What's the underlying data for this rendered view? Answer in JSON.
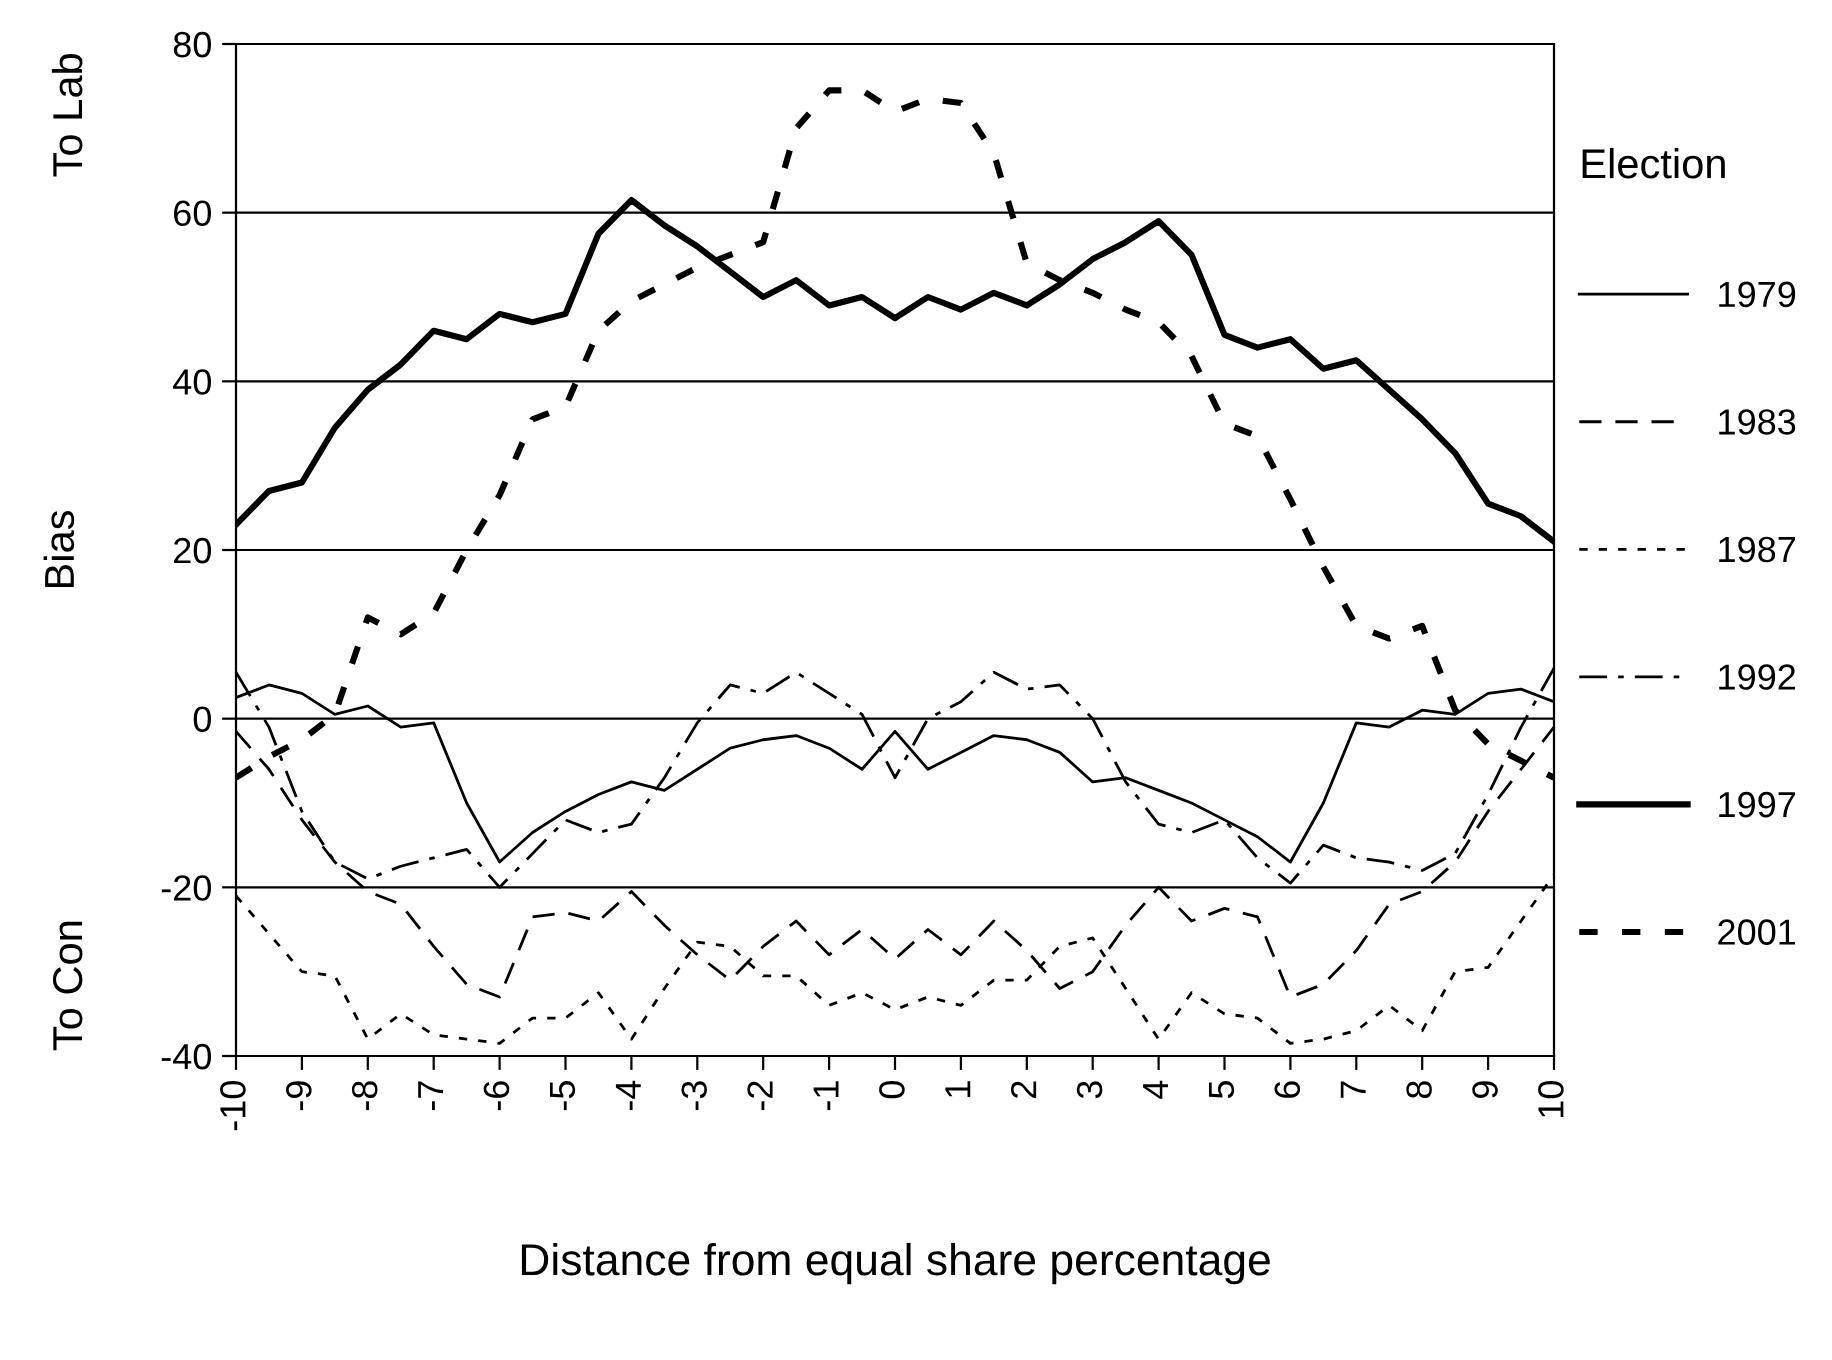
{
  "chart_data": {
    "type": "line",
    "xlabel": "Distance from equal share percentage",
    "ylabel": "Bias",
    "annotations": [
      "To Lab",
      "To Con"
    ],
    "legend_title": "Election",
    "legend": "right",
    "grid": "y",
    "x": [
      -10,
      -9.5,
      -9,
      -8.5,
      -8,
      -7.5,
      -7,
      -6.5,
      -6,
      -5.5,
      -5,
      -4.5,
      -4,
      -3.5,
      -3,
      -2.5,
      -2,
      -1.5,
      -1,
      -0.5,
      0,
      0.5,
      1,
      1.5,
      2,
      2.5,
      3,
      3.5,
      4,
      4.5,
      5,
      5.5,
      6,
      6.5,
      7,
      7.5,
      8,
      8.5,
      9,
      9.5,
      10
    ],
    "xlim": [
      -10,
      10
    ],
    "xticks": [
      -10,
      -9,
      -8,
      -7,
      -6,
      -5,
      -4,
      -3,
      -2,
      -1,
      0,
      1,
      2,
      3,
      4,
      5,
      6,
      7,
      8,
      9,
      10
    ],
    "ylim": [
      -40,
      80
    ],
    "yticks": [
      -40,
      -20,
      0,
      20,
      40,
      60,
      80
    ],
    "series": [
      {
        "name": "1979",
        "color": "#000000",
        "line_style": "solid",
        "values": [
          2.5,
          4,
          3,
          0.5,
          1.5,
          -1,
          -0.5,
          -10,
          -17,
          -13.5,
          -11,
          -9,
          -7.5,
          -8.5,
          -6,
          -3.5,
          -2.5,
          -2,
          -3.5,
          -6,
          -1.5,
          -6,
          -4,
          -2,
          -2.5,
          -4,
          -7.5,
          -7,
          -8.5,
          -10,
          -12,
          -14,
          -17,
          -10,
          -0.5,
          -1,
          1,
          0.5,
          3,
          3.5,
          2
        ]
      },
      {
        "name": "1983",
        "color": "#000000",
        "line_style": "dashed",
        "values": [
          -1.5,
          -6,
          -12,
          -17,
          -20.5,
          -22,
          -27,
          -31.5,
          -33,
          -23.5,
          -23,
          -24,
          -20.5,
          -24.5,
          -28,
          -31,
          -27,
          -24,
          -28,
          -25,
          -28.5,
          -25,
          -28,
          -24,
          -27.5,
          -32,
          -30,
          -24.5,
          -20,
          -24,
          -22.5,
          -23.5,
          -33,
          -31.5,
          -27.5,
          -22,
          -20.5,
          -17,
          -11,
          -6,
          -1
        ]
      },
      {
        "name": "1987",
        "color": "#000000",
        "line_style": "dotted",
        "values": [
          -21,
          -25.5,
          -30,
          -30.5,
          -38,
          -35,
          -37.5,
          -38,
          -38.5,
          -35.5,
          -35.5,
          -32.5,
          -38,
          -32,
          -26.5,
          -27,
          -30.5,
          -30.5,
          -34,
          -32.5,
          -34.5,
          -33,
          -34,
          -31,
          -31,
          -27,
          -26,
          -32,
          -38,
          -32.5,
          -35,
          -35.5,
          -38.5,
          -38,
          -37,
          -34,
          -37,
          -30,
          -29.5,
          -24,
          -18.5
        ]
      },
      {
        "name": "1992",
        "color": "#000000",
        "line_style": "dashdot",
        "values": [
          5.5,
          -1,
          -11,
          -17,
          -19,
          -17.5,
          -16.5,
          -15.5,
          -20,
          -16,
          -12,
          -13.5,
          -12.5,
          -7,
          -0.5,
          4,
          3,
          5.5,
          3,
          0.5,
          -7,
          0,
          2,
          5.5,
          3.5,
          4,
          0,
          -7.5,
          -12.5,
          -13.5,
          -12,
          -16.5,
          -19.5,
          -15,
          -16.5,
          -17,
          -18,
          -16,
          -9,
          -1,
          6
        ]
      },
      {
        "name": "1997",
        "color": "#000000",
        "line_style": "solid",
        "values": [
          23,
          27,
          28,
          34.5,
          39,
          42,
          46,
          45,
          48,
          47,
          48,
          57.5,
          61.5,
          58.5,
          56,
          53,
          50,
          52,
          49,
          50,
          47.5,
          50,
          48.5,
          50.5,
          49,
          51.5,
          54.5,
          56.5,
          59,
          55,
          45.5,
          44,
          45,
          41.5,
          42.5,
          39,
          35.5,
          31.5,
          25.5,
          24,
          21
        ]
      },
      {
        "name": "2001",
        "color": "#000000",
        "line_style": "dotted",
        "values": [
          -7,
          -4.5,
          -2.5,
          0.5,
          12,
          10,
          12.5,
          20,
          26.5,
          35.5,
          37,
          46,
          49.5,
          51.5,
          53.5,
          55,
          56.5,
          70,
          74.5,
          74.5,
          72,
          73.5,
          73,
          67,
          54,
          52,
          50.5,
          48.5,
          47,
          43,
          35,
          33.5,
          26,
          18,
          11,
          9.5,
          11,
          1,
          -3,
          -5,
          -7
        ]
      }
    ]
  }
}
